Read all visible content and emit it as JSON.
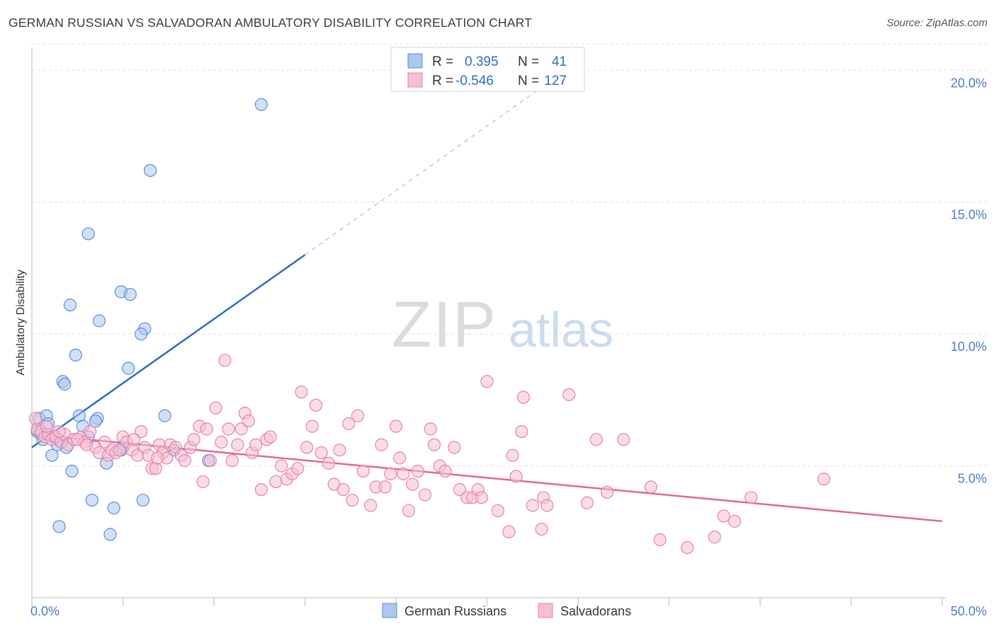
{
  "title": "GERMAN RUSSIAN VS SALVADORAN AMBULATORY DISABILITY CORRELATION CHART",
  "source": "Source: ZipAtlas.com",
  "watermark": {
    "zip": "ZIP",
    "atlas": "atlas"
  },
  "chart_data": {
    "type": "scatter",
    "title": "GERMAN RUSSIAN VS SALVADORAN AMBULATORY DISABILITY CORRELATION CHART",
    "xlabel": "",
    "ylabel": "Ambulatory Disability",
    "xlim": [
      0,
      50
    ],
    "ylim": [
      0,
      21
    ],
    "x_tick_labels": [
      "0.0%",
      "50.0%"
    ],
    "y_ticks": [
      5,
      10,
      15,
      20
    ],
    "y_tick_labels": [
      "5.0%",
      "10.0%",
      "15.0%",
      "20.0%"
    ],
    "grid": true,
    "legend_position": "top-center",
    "stats": [
      {
        "series": "German Russians",
        "r_label": "R =",
        "r": "0.395",
        "n_label": "N =",
        "n": "41"
      },
      {
        "series": "Salvadorans",
        "r_label": "R =",
        "r": "-0.546",
        "n_label": "N =",
        "n": "127"
      }
    ],
    "series": [
      {
        "name": "German Russians",
        "color": "#5b8fd6",
        "fill": "#aac8f0",
        "trend_color": "#2a6ebf",
        "trend": {
          "x0": 0.0,
          "y0": 5.7,
          "x1": 15.0,
          "y1": 13.0,
          "dash_to_x": 28.0,
          "dash_to_y": 19.35
        },
        "points": [
          [
            12.6,
            18.7
          ],
          [
            6.5,
            16.2
          ],
          [
            3.1,
            13.8
          ],
          [
            4.9,
            11.6
          ],
          [
            5.4,
            11.5
          ],
          [
            2.1,
            11.1
          ],
          [
            3.7,
            10.5
          ],
          [
            6.2,
            10.2
          ],
          [
            6.0,
            10.0
          ],
          [
            2.4,
            9.2
          ],
          [
            5.3,
            8.7
          ],
          [
            1.7,
            8.2
          ],
          [
            1.8,
            8.1
          ],
          [
            0.4,
            6.8
          ],
          [
            0.8,
            6.9
          ],
          [
            2.6,
            6.9
          ],
          [
            3.6,
            6.8
          ],
          [
            3.5,
            6.7
          ],
          [
            7.3,
            6.9
          ],
          [
            0.9,
            6.6
          ],
          [
            0.3,
            6.3
          ],
          [
            0.5,
            6.2
          ],
          [
            0.6,
            6.0
          ],
          [
            1.2,
            6.1
          ],
          [
            1.5,
            6.0
          ],
          [
            3.1,
            6.1
          ],
          [
            2.8,
            6.5
          ],
          [
            1.4,
            5.8
          ],
          [
            1.9,
            5.7
          ],
          [
            5.0,
            5.7
          ],
          [
            4.9,
            5.6
          ],
          [
            7.8,
            5.6
          ],
          [
            1.1,
            5.4
          ],
          [
            4.1,
            5.1
          ],
          [
            9.7,
            5.2
          ],
          [
            2.2,
            4.8
          ],
          [
            3.3,
            3.7
          ],
          [
            4.5,
            3.4
          ],
          [
            6.1,
            3.7
          ],
          [
            1.5,
            2.7
          ],
          [
            4.3,
            2.4
          ]
        ]
      },
      {
        "name": "Salvadorans",
        "color": "#e882a8",
        "fill": "#f6bfd3",
        "trend_color": "#e0698f",
        "trend": {
          "x0": 0.0,
          "y0": 6.2,
          "x1": 50.0,
          "y1": 2.9
        },
        "points": [
          [
            0.3,
            6.4
          ],
          [
            0.5,
            6.3
          ],
          [
            0.7,
            6.1
          ],
          [
            0.9,
            6.2
          ],
          [
            1.1,
            6.0
          ],
          [
            1.3,
            6.1
          ],
          [
            1.6,
            5.9
          ],
          [
            1.8,
            6.2
          ],
          [
            2.0,
            5.8
          ],
          [
            2.3,
            6.0
          ],
          [
            2.7,
            6.1
          ],
          [
            2.9,
            5.9
          ],
          [
            3.2,
            6.3
          ],
          [
            3.5,
            5.7
          ],
          [
            3.7,
            5.5
          ],
          [
            4.0,
            5.9
          ],
          [
            4.2,
            5.4
          ],
          [
            4.4,
            5.6
          ],
          [
            4.6,
            5.5
          ],
          [
            5.0,
            6.1
          ],
          [
            5.2,
            5.9
          ],
          [
            5.5,
            5.6
          ],
          [
            5.8,
            5.4
          ],
          [
            6.0,
            6.3
          ],
          [
            6.2,
            5.7
          ],
          [
            6.4,
            5.4
          ],
          [
            6.6,
            4.9
          ],
          [
            6.8,
            4.9
          ],
          [
            7.0,
            5.8
          ],
          [
            7.2,
            5.5
          ],
          [
            7.4,
            5.3
          ],
          [
            7.6,
            5.8
          ],
          [
            7.9,
            5.7
          ],
          [
            8.2,
            5.4
          ],
          [
            8.4,
            5.2
          ],
          [
            8.7,
            5.7
          ],
          [
            8.9,
            6.0
          ],
          [
            9.2,
            6.5
          ],
          [
            9.4,
            4.4
          ],
          [
            9.6,
            6.4
          ],
          [
            9.8,
            5.2
          ],
          [
            10.1,
            7.2
          ],
          [
            10.4,
            5.9
          ],
          [
            10.6,
            9.0
          ],
          [
            10.8,
            6.4
          ],
          [
            11.0,
            5.2
          ],
          [
            11.3,
            5.8
          ],
          [
            11.5,
            6.4
          ],
          [
            11.7,
            7.0
          ],
          [
            11.9,
            6.7
          ],
          [
            12.1,
            5.5
          ],
          [
            12.3,
            5.8
          ],
          [
            12.6,
            4.1
          ],
          [
            12.9,
            6.0
          ],
          [
            13.1,
            6.1
          ],
          [
            13.4,
            4.4
          ],
          [
            13.7,
            5.0
          ],
          [
            14.0,
            4.5
          ],
          [
            14.3,
            4.7
          ],
          [
            14.6,
            4.9
          ],
          [
            14.8,
            7.8
          ],
          [
            15.1,
            5.7
          ],
          [
            15.4,
            6.5
          ],
          [
            15.6,
            7.3
          ],
          [
            15.9,
            5.5
          ],
          [
            16.3,
            5.1
          ],
          [
            16.6,
            4.3
          ],
          [
            16.9,
            5.6
          ],
          [
            17.1,
            4.1
          ],
          [
            17.4,
            6.6
          ],
          [
            17.6,
            3.7
          ],
          [
            17.9,
            6.9
          ],
          [
            18.2,
            4.8
          ],
          [
            18.6,
            3.5
          ],
          [
            18.9,
            4.2
          ],
          [
            19.2,
            5.8
          ],
          [
            19.4,
            4.2
          ],
          [
            19.7,
            4.7
          ],
          [
            20.0,
            6.5
          ],
          [
            20.2,
            5.3
          ],
          [
            20.4,
            4.7
          ],
          [
            20.7,
            3.3
          ],
          [
            20.9,
            4.3
          ],
          [
            21.2,
            4.8
          ],
          [
            21.6,
            3.9
          ],
          [
            21.9,
            6.4
          ],
          [
            22.1,
            5.8
          ],
          [
            22.4,
            5.0
          ],
          [
            22.7,
            4.8
          ],
          [
            23.2,
            5.7
          ],
          [
            23.5,
            4.1
          ],
          [
            23.9,
            3.8
          ],
          [
            24.2,
            3.8
          ],
          [
            24.5,
            4.1
          ],
          [
            24.7,
            3.8
          ],
          [
            25.0,
            8.2
          ],
          [
            25.6,
            3.3
          ],
          [
            26.2,
            2.5
          ],
          [
            26.4,
            5.4
          ],
          [
            26.6,
            4.6
          ],
          [
            26.9,
            6.3
          ],
          [
            27.0,
            7.6
          ],
          [
            27.5,
            3.5
          ],
          [
            28.1,
            3.8
          ],
          [
            28.3,
            3.5
          ],
          [
            28.0,
            2.6
          ],
          [
            29.5,
            7.7
          ],
          [
            30.5,
            3.6
          ],
          [
            31.0,
            6.0
          ],
          [
            31.6,
            4.0
          ],
          [
            32.5,
            6.0
          ],
          [
            34.0,
            4.2
          ],
          [
            34.5,
            2.2
          ],
          [
            36.0,
            1.9
          ],
          [
            37.5,
            2.3
          ],
          [
            38.0,
            3.1
          ],
          [
            38.6,
            2.9
          ],
          [
            39.5,
            3.8
          ],
          [
            43.5,
            4.5
          ],
          [
            0.2,
            6.8
          ],
          [
            0.8,
            6.5
          ],
          [
            1.5,
            6.3
          ],
          [
            2.5,
            6.0
          ],
          [
            3.0,
            5.8
          ],
          [
            4.8,
            5.6
          ],
          [
            5.6,
            6.0
          ],
          [
            6.9,
            5.3
          ]
        ]
      }
    ]
  }
}
